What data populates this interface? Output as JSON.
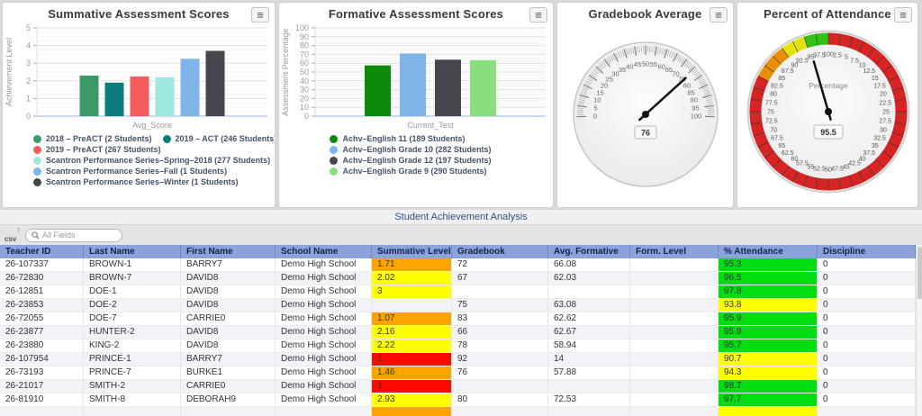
{
  "chart_data": [
    {
      "id": "summative",
      "type": "bar",
      "title": "Summative Assessment Scores",
      "xlabel": "Avg_Score",
      "ylabel": "Achievement Level",
      "ylim": [
        0,
        5
      ],
      "ytick_step": 1,
      "grid": true,
      "legend_position": "bottom",
      "series": [
        {
          "name": "2018 – PreACT (2 Students)",
          "color": "#3a9b66",
          "value": 2.3
        },
        {
          "name": "2019 – ACT (246 Students)",
          "color": "#0d7c7c",
          "value": 1.9
        },
        {
          "name": "2019 – PreACT (267 Students)",
          "color": "#f25c5c",
          "value": 2.25
        },
        {
          "name": "Scantron Performance Series–Spring–2018 (277 Students)",
          "color": "#9fe8dd",
          "value": 2.2
        },
        {
          "name": "Scantron Performance Series–Fall (1 Students)",
          "color": "#7fb5e9",
          "value": 3.25
        },
        {
          "name": "Scantron Performance Series–Winter (1 Students)",
          "color": "#46464c",
          "value": 3.7
        }
      ]
    },
    {
      "id": "formative",
      "type": "bar",
      "title": "Formative Assessment Scores",
      "xlabel": "Current_Test",
      "ylabel": "Assessment Percentage",
      "ylim": [
        0,
        100
      ],
      "ytick_step": 10,
      "grid": true,
      "legend_position": "bottom",
      "series": [
        {
          "name": "Achv–English 11 (189 Students)",
          "color": "#0b8a0b",
          "value": 57.5
        },
        {
          "name": "Achv–English Grade 10 (282 Students)",
          "color": "#7fb5e9",
          "value": 71
        },
        {
          "name": "Achv–English Grade 12 (197 Students)",
          "color": "#46464c",
          "value": 64
        },
        {
          "name": "Achv–English Grade 9 (290 Students)",
          "color": "#8ade7f",
          "value": 63.5
        }
      ]
    },
    {
      "id": "gradebook",
      "type": "gauge",
      "style": "semi",
      "title": "Gradebook Average",
      "value": 76,
      "value_label": "76",
      "min": 0,
      "max": 100,
      "label_step": 5
    },
    {
      "id": "attendance",
      "type": "gauge",
      "style": "circular",
      "title": "Percent of Attendance",
      "value": 95.5,
      "value_label": "95.5",
      "center_label": "Percentage",
      "min": 0,
      "max": 100,
      "label_step": 2.5,
      "zones": [
        {
          "from": 0,
          "to": 82.5,
          "color": "#e02020"
        },
        {
          "from": 82.5,
          "to": 90,
          "color": "#f59300"
        },
        {
          "from": 90,
          "to": 95,
          "color": "#f0ed00"
        },
        {
          "from": 95,
          "to": 100,
          "color": "#2ecc11"
        }
      ]
    }
  ],
  "analysis": {
    "section_title": "Student Achievement Analysis",
    "toolbar": {
      "csv_label": "csv",
      "csv_arrow": "↑",
      "search_placeholder": "All Fields"
    },
    "columns": [
      "Teacher ID",
      "Last Name",
      "First Name",
      "School Name",
      "Summative Level",
      "Gradebook",
      "Avg. Formative",
      "Form. Level",
      "% Attendance",
      "Discipline"
    ],
    "cell_colors": {
      "orange": "#ffa300",
      "yellow": "#ffff00",
      "red": "#ff0800",
      "green": "#00dd11",
      "none": ""
    },
    "rows": [
      {
        "cells": [
          "26-107337",
          "BROWN-1",
          "BARRY7",
          "Demo High School",
          "1.71",
          "72",
          "66.08",
          "",
          "95.3",
          "0"
        ],
        "summative_color": "orange",
        "attendance_color": "green"
      },
      {
        "cells": [
          "26-72830",
          "BROWN-7",
          "DAVID8",
          "Demo High School",
          "2.02",
          "67",
          "62.03",
          "",
          "96.5",
          "0"
        ],
        "summative_color": "yellow",
        "attendance_color": "green"
      },
      {
        "cells": [
          "26-12851",
          "DOE-1",
          "DAVID8",
          "Demo High School",
          "3",
          "",
          "",
          "",
          "97.8",
          "0"
        ],
        "summative_color": "yellow",
        "attendance_color": "green"
      },
      {
        "cells": [
          "26-23853",
          "DOE-2",
          "DAVID8",
          "Demo High School",
          "",
          "75",
          "63.08",
          "",
          "93.8",
          "0"
        ],
        "summative_color": "none",
        "attendance_color": "yellow"
      },
      {
        "cells": [
          "26-72055",
          "DOE-7",
          "CARRIE0",
          "Demo High School",
          "1.07",
          "83",
          "62.62",
          "",
          "95.9",
          "0"
        ],
        "summative_color": "orange",
        "attendance_color": "green"
      },
      {
        "cells": [
          "26-23877",
          "HUNTER-2",
          "DAVID8",
          "Demo High School",
          "2.16",
          "66",
          "62.67",
          "",
          "95.9",
          "0"
        ],
        "summative_color": "yellow",
        "attendance_color": "green"
      },
      {
        "cells": [
          "26-23880",
          "KING-2",
          "DAVID8",
          "Demo High School",
          "2.22",
          "78",
          "58.94",
          "",
          "95.7",
          "0"
        ],
        "summative_color": "yellow",
        "attendance_color": "green"
      },
      {
        "cells": [
          "26-107954",
          "PRINCE-1",
          "BARRY7",
          "Demo High School",
          "1",
          "92",
          "14",
          "",
          "90.7",
          "0"
        ],
        "summative_color": "red",
        "attendance_color": "yellow"
      },
      {
        "cells": [
          "26-73193",
          "PRINCE-7",
          "BURKE1",
          "Demo High School",
          "1.46",
          "76",
          "57.88",
          "",
          "94.3",
          "0"
        ],
        "summative_color": "orange",
        "attendance_color": "yellow"
      },
      {
        "cells": [
          "26-21017",
          "SMITH-2",
          "CARRIE0",
          "Demo High School",
          "1",
          "",
          "",
          "",
          "98.7",
          "0"
        ],
        "summative_color": "red",
        "attendance_color": "green"
      },
      {
        "cells": [
          "26-81910",
          "SMITH-8",
          "DEBORAH9",
          "Demo High School",
          "2.93",
          "80",
          "72.53",
          "",
          "97.7",
          "0"
        ],
        "summative_color": "yellow",
        "attendance_color": "green"
      },
      {
        "cells": [
          "",
          "",
          "",
          "",
          "",
          "",
          "",
          "",
          "",
          ""
        ],
        "summative_color": "orange",
        "attendance_color": "yellow",
        "partial": true
      }
    ]
  }
}
